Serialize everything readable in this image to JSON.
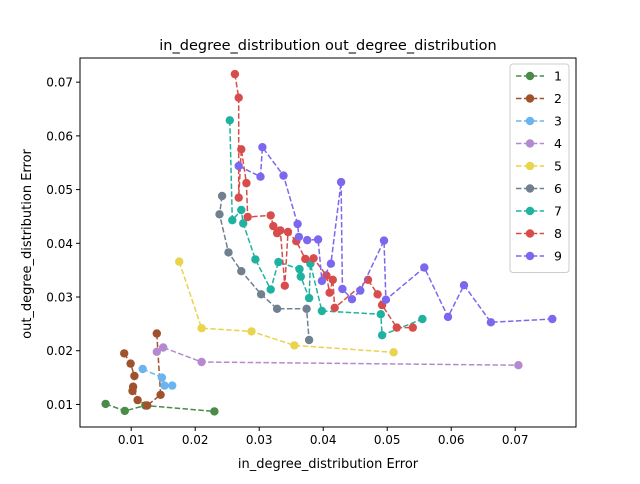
{
  "chart_data": {
    "type": "line",
    "title": "in_degree_distribution out_degree_distribution",
    "xlabel": "in_degree_distribution Error",
    "ylabel": "out_degree_distribution Error",
    "xlim": [
      0.002,
      0.0795
    ],
    "ylim": [
      0.0058,
      0.0745
    ],
    "xticks": [
      0.01,
      0.02,
      0.03,
      0.04,
      0.05,
      0.06,
      0.07
    ],
    "xtick_labels": [
      "0.01",
      "0.02",
      "0.03",
      "0.04",
      "0.05",
      "0.06",
      "0.07"
    ],
    "yticks": [
      0.01,
      0.02,
      0.03,
      0.04,
      0.05,
      0.06,
      0.07
    ],
    "ytick_labels": [
      "0.01",
      "0.02",
      "0.03",
      "0.04",
      "0.05",
      "0.06",
      "0.07"
    ],
    "grid": false,
    "legend_position": "top-right",
    "line_style": "dashed",
    "marker": "circle",
    "series": [
      {
        "name": "1",
        "color": "#4a8b4a",
        "points": [
          [
            0.006,
            0.0101
          ],
          [
            0.009,
            0.0088
          ],
          [
            0.0122,
            0.0098
          ],
          [
            0.023,
            0.0087
          ]
        ]
      },
      {
        "name": "2",
        "color": "#a0522d",
        "points": [
          [
            0.0089,
            0.0195
          ],
          [
            0.0099,
            0.0176
          ],
          [
            0.0105,
            0.0153
          ],
          [
            0.0102,
            0.0125
          ],
          [
            0.0103,
            0.0133
          ],
          [
            0.011,
            0.0108
          ],
          [
            0.0125,
            0.0098
          ],
          [
            0.0146,
            0.0118
          ],
          [
            0.014,
            0.0232
          ]
        ]
      },
      {
        "name": "3",
        "color": "#6cb4f0",
        "points": [
          [
            0.0118,
            0.0166
          ],
          [
            0.0148,
            0.015
          ],
          [
            0.0152,
            0.0135
          ],
          [
            0.0164,
            0.0135
          ]
        ]
      },
      {
        "name": "4",
        "color": "#b589d0",
        "points": [
          [
            0.014,
            0.0198
          ],
          [
            0.015,
            0.0206
          ],
          [
            0.021,
            0.0179
          ],
          [
            0.0705,
            0.0173
          ]
        ]
      },
      {
        "name": "5",
        "color": "#e8d44d",
        "points": [
          [
            0.0175,
            0.0366
          ],
          [
            0.021,
            0.0242
          ],
          [
            0.0288,
            0.0236
          ],
          [
            0.0355,
            0.021
          ],
          [
            0.051,
            0.0197
          ]
        ]
      },
      {
        "name": "6",
        "color": "#708090",
        "points": [
          [
            0.0242,
            0.0488
          ],
          [
            0.0238,
            0.0454
          ],
          [
            0.0252,
            0.0383
          ],
          [
            0.0272,
            0.0348
          ],
          [
            0.0303,
            0.0305
          ],
          [
            0.0328,
            0.0278
          ],
          [
            0.0374,
            0.0278
          ],
          [
            0.0378,
            0.022
          ]
        ]
      },
      {
        "name": "7",
        "color": "#20b2a0",
        "points": [
          [
            0.0254,
            0.0629
          ],
          [
            0.0258,
            0.0443
          ],
          [
            0.0272,
            0.0462
          ],
          [
            0.0275,
            0.0437
          ],
          [
            0.0294,
            0.037
          ],
          [
            0.0318,
            0.0314
          ],
          [
            0.033,
            0.0365
          ],
          [
            0.0363,
            0.0352
          ],
          [
            0.0365,
            0.0338
          ],
          [
            0.0378,
            0.0298
          ],
          [
            0.038,
            0.0362
          ],
          [
            0.0398,
            0.0274
          ],
          [
            0.049,
            0.0268
          ],
          [
            0.0492,
            0.0229
          ],
          [
            0.0555,
            0.0259
          ]
        ]
      },
      {
        "name": "8",
        "color": "#d94c4c",
        "points": [
          [
            0.0262,
            0.0715
          ],
          [
            0.0268,
            0.0671
          ],
          [
            0.0268,
            0.0485
          ],
          [
            0.0272,
            0.0575
          ],
          [
            0.028,
            0.0512
          ],
          [
            0.0282,
            0.0449
          ],
          [
            0.0318,
            0.0452
          ],
          [
            0.0322,
            0.0432
          ],
          [
            0.0328,
            0.0419
          ],
          [
            0.0333,
            0.0424
          ],
          [
            0.034,
            0.0321
          ],
          [
            0.0345,
            0.0421
          ],
          [
            0.0358,
            0.0404
          ],
          [
            0.0372,
            0.0371
          ],
          [
            0.0385,
            0.0372
          ],
          [
            0.0405,
            0.034
          ],
          [
            0.041,
            0.0308
          ],
          [
            0.0415,
            0.0332
          ],
          [
            0.0418,
            0.028
          ],
          [
            0.047,
            0.0332
          ],
          [
            0.0485,
            0.0305
          ],
          [
            0.0492,
            0.0285
          ],
          [
            0.0515,
            0.0243
          ],
          [
            0.054,
            0.0243
          ]
        ]
      },
      {
        "name": "9",
        "color": "#7b68ee",
        "points": [
          [
            0.0268,
            0.0544
          ],
          [
            0.0302,
            0.0524
          ],
          [
            0.0305,
            0.0579
          ],
          [
            0.0338,
            0.0526
          ],
          [
            0.036,
            0.0436
          ],
          [
            0.0362,
            0.0412
          ],
          [
            0.0375,
            0.0406
          ],
          [
            0.0392,
            0.0407
          ],
          [
            0.0398,
            0.033
          ],
          [
            0.0412,
            0.0362
          ],
          [
            0.0428,
            0.0514
          ],
          [
            0.043,
            0.0315
          ],
          [
            0.0445,
            0.0296
          ],
          [
            0.0458,
            0.0312
          ],
          [
            0.0495,
            0.0405
          ],
          [
            0.0498,
            0.0295
          ],
          [
            0.0558,
            0.0355
          ],
          [
            0.0595,
            0.0263
          ],
          [
            0.062,
            0.0322
          ],
          [
            0.0662,
            0.0253
          ],
          [
            0.0758,
            0.0259
          ]
        ]
      }
    ]
  }
}
